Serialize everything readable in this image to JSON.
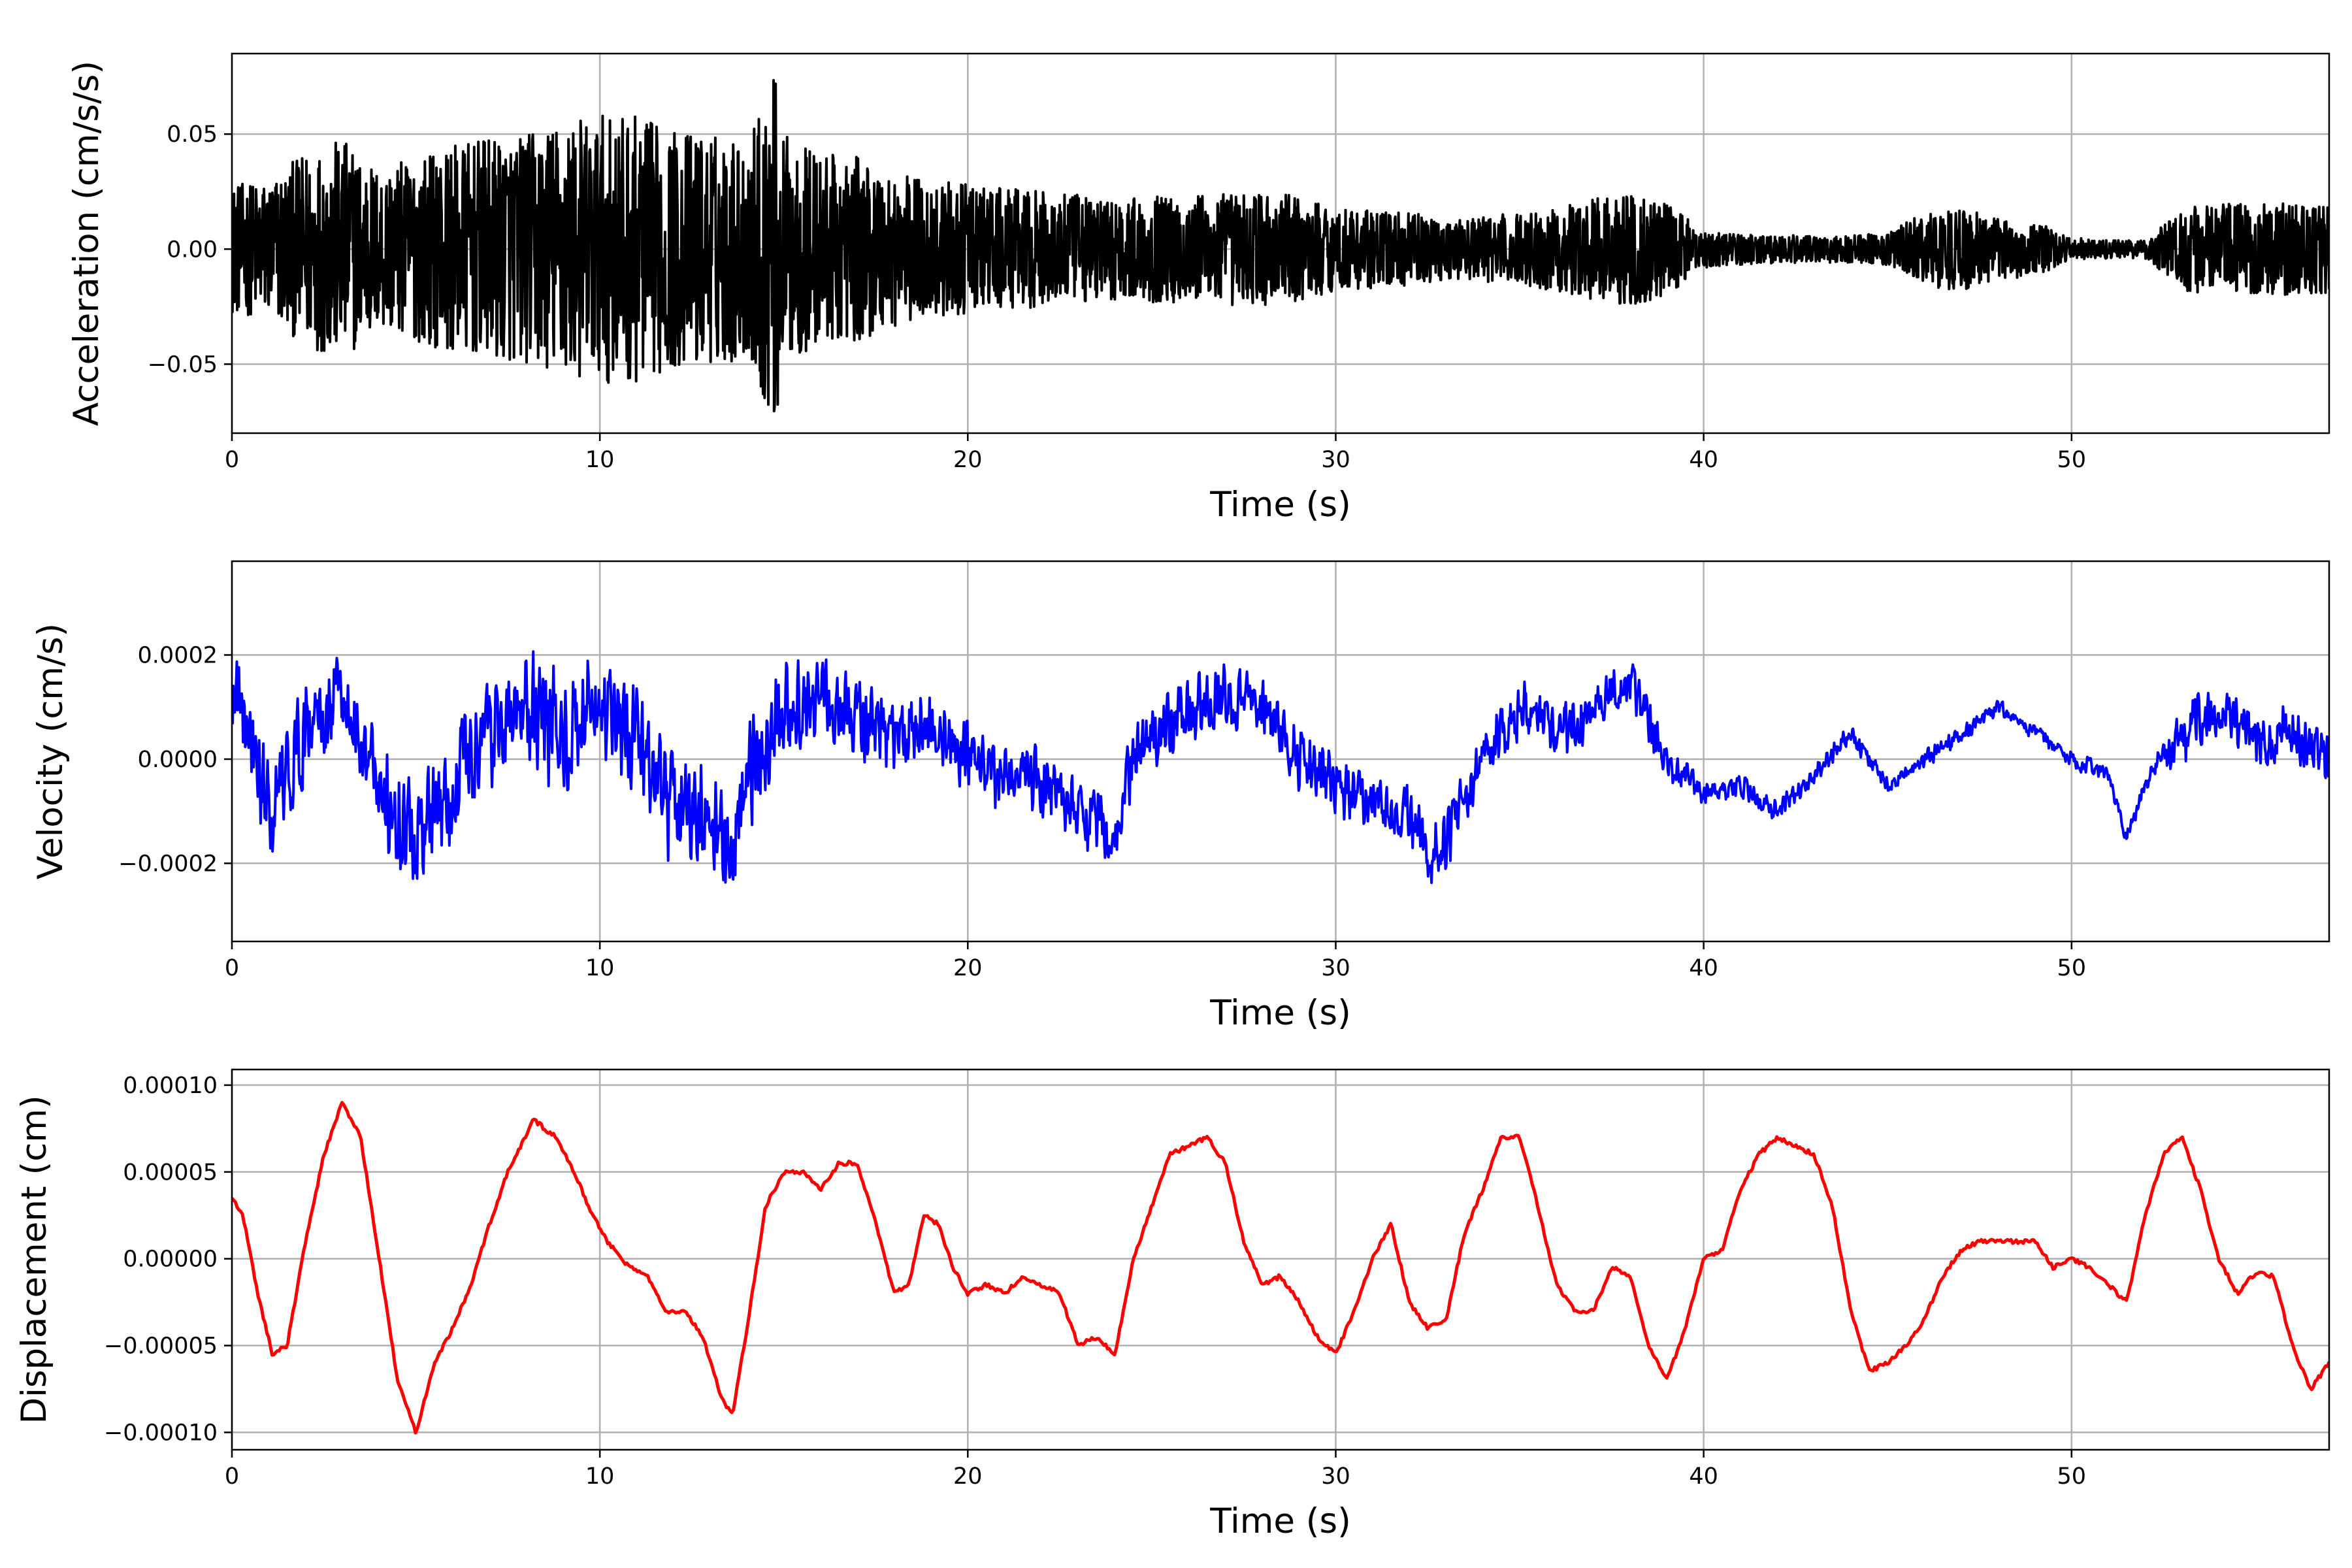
{
  "chart_data": [
    {
      "type": "line",
      "xlabel": "Time (s)",
      "ylabel": "Acceleration (cm/s/s)",
      "xlim": [
        0,
        57
      ],
      "ylim": [
        -0.08,
        0.085
      ],
      "xticks": [
        0,
        10,
        20,
        30,
        40,
        50
      ],
      "xtick_labels": [
        "0",
        "10",
        "20",
        "30",
        "40",
        "50"
      ],
      "yticks": [
        -0.05,
        0.0,
        0.05
      ],
      "ytick_labels": [
        "−0.05",
        "0.00",
        "0.05"
      ],
      "grid": true,
      "color": "#000000",
      "series": [
        {
          "envelope": {
            "t": [
              0,
              1,
              2,
              3,
              4,
              5,
              6,
              7,
              8,
              9,
              10,
              11,
              12,
              13,
              14,
              14.8,
              15,
              16,
              17,
              18,
              19,
              20,
              22,
              24,
              26,
              28,
              29,
              30,
              32,
              33,
              34,
              36,
              37,
              38,
              39,
              40,
              42,
              44,
              45,
              46,
              47,
              48,
              49,
              50,
              51,
              52,
              53,
              54,
              55,
              56,
              57
            ],
            "amp": [
              0.028,
              0.03,
              0.042,
              0.048,
              0.035,
              0.04,
              0.045,
              0.048,
              0.05,
              0.056,
              0.058,
              0.058,
              0.052,
              0.05,
              0.048,
              0.078,
              0.05,
              0.042,
              0.04,
              0.034,
              0.03,
              0.028,
              0.025,
              0.022,
              0.024,
              0.025,
              0.023,
              0.018,
              0.016,
              0.013,
              0.014,
              0.018,
              0.022,
              0.025,
              0.02,
              0.008,
              0.006,
              0.006,
              0.007,
              0.016,
              0.018,
              0.013,
              0.012,
              0.005,
              0.004,
              0.004,
              0.018,
              0.02,
              0.02,
              0.02,
              0.02
            ]
          }
        }
      ]
    },
    {
      "type": "line",
      "xlabel": "Time (s)",
      "ylabel": "Velocity (cm/s)",
      "xlim": [
        0,
        57
      ],
      "ylim": [
        -0.00035,
        0.00038
      ],
      "xticks": [
        0,
        10,
        20,
        30,
        40,
        50
      ],
      "xtick_labels": [
        "0",
        "10",
        "20",
        "30",
        "40",
        "50"
      ],
      "yticks": [
        -0.0002,
        0.0,
        0.0002
      ],
      "ytick_labels": [
        "−0.0002",
        "0.0000",
        "0.0002"
      ],
      "grid": true,
      "color": "#0000ff",
      "series": [
        {
          "trend": {
            "t": [
              0,
              0.3,
              1,
              2,
              3,
              4,
              5,
              6,
              7,
              8,
              9,
              10,
              11,
              12,
              13,
              13.5,
              14,
              15,
              16,
              17,
              18,
              19,
              20,
              21,
              22,
              23,
              24,
              24.5,
              25,
              26,
              27,
              28,
              29,
              30,
              31,
              32,
              32.5,
              33,
              34,
              35,
              36,
              37,
              38,
              39,
              40,
              41,
              42,
              43,
              44,
              45,
              46,
              47,
              48,
              49,
              50,
              51,
              51.5,
              52,
              53,
              54,
              55,
              56,
              57
            ],
            "v": [
              0.00015,
              0.0001,
              -0.0001,
              5e-05,
              0.0001,
              -5e-05,
              -0.00015,
              -5e-05,
              5e-05,
              0.0001,
              5e-05,
              8e-05,
              3e-05,
              -0.0001,
              -0.0001,
              -0.0002,
              -5e-05,
              0.0001,
              0.0001,
              8e-05,
              5e-05,
              5e-05,
              0.0,
              -3e-05,
              -5e-05,
              -0.0001,
              -0.00015,
              0.0,
              5e-05,
              0.0001,
              0.00012,
              0.0001,
              0.0,
              -5e-05,
              -8e-05,
              -0.0001,
              -0.0002,
              -0.00015,
              0.0,
              0.0001,
              5e-05,
              0.0001,
              0.00015,
              0.0,
              -7e-05,
              -5e-05,
              -0.0001,
              -3e-05,
              5e-05,
              -5e-05,
              0.0,
              5e-05,
              0.0001,
              5e-05,
              0.0,
              -3e-05,
              -0.00015,
              -5e-05,
              5e-05,
              0.0001,
              3e-05,
              5e-05,
              0.0
            ]
          },
          "noise": {
            "t": [
              0,
              10,
              15,
              17,
              20,
              25,
              30,
              38,
              40,
              45,
              52,
              53,
              57
            ],
            "amp": [
              8e-05,
              0.0001,
              9e-05,
              7e-05,
              6e-05,
              6e-05,
              5e-05,
              5e-05,
              2e-05,
              1.5e-05,
              1.5e-05,
              5e-05,
              5e-05
            ]
          }
        }
      ]
    },
    {
      "type": "line",
      "xlabel": "Time (s)",
      "ylabel": "Displacement (cm)",
      "xlim": [
        0,
        57
      ],
      "ylim": [
        -0.00011,
        0.000109
      ],
      "xticks": [
        0,
        10,
        20,
        30,
        40,
        50
      ],
      "xtick_labels": [
        "0",
        "10",
        "20",
        "30",
        "40",
        "50"
      ],
      "yticks": [
        -0.0001,
        -5e-05,
        0.0,
        5e-05,
        0.0001
      ],
      "ytick_labels": [
        "−0.00010",
        "−0.00005",
        "0.00000",
        "0.00005",
        "0.00010"
      ],
      "grid": true,
      "color": "#ff0000",
      "series": [
        {
          "t": [
            0,
            0.3,
            0.7,
            1.1,
            1.5,
            2.0,
            2.5,
            3.0,
            3.5,
            4.0,
            4.5,
            5.0,
            5.5,
            6.0,
            6.5,
            7.0,
            7.5,
            8.2,
            8.8,
            9.3,
            9.7,
            10.2,
            10.8,
            11.3,
            11.8,
            12.3,
            12.8,
            13.3,
            13.6,
            14.0,
            14.5,
            15.0,
            15.5,
            16.0,
            16.5,
            17.0,
            17.5,
            18.0,
            18.4,
            18.8,
            19.2,
            19.6,
            20.0,
            20.5,
            21.0,
            21.5,
            22.0,
            22.5,
            23.0,
            23.5,
            24.0,
            24.5,
            25.0,
            25.5,
            26.0,
            26.5,
            27.0,
            27.5,
            28.0,
            28.5,
            29.0,
            29.5,
            30.0,
            30.5,
            31.0,
            31.5,
            32.0,
            32.5,
            33.0,
            33.5,
            34.0,
            34.5,
            35.0,
            35.5,
            36.0,
            36.5,
            37.0,
            37.5,
            38.0,
            38.5,
            39.0,
            39.5,
            40.0,
            40.5,
            41.0,
            41.5,
            42.0,
            42.5,
            43.0,
            43.5,
            44.0,
            44.5,
            45.0,
            45.5,
            46.0,
            46.5,
            47.0,
            47.5,
            48.0,
            48.5,
            49.0,
            49.5,
            50.0,
            50.5,
            51.0,
            51.5,
            52.0,
            52.5,
            53.0,
            53.5,
            54.0,
            54.5,
            55.0,
            55.5,
            56.0,
            56.5,
            57.0
          ],
          "y": [
            3.5e-05,
            2.5e-05,
            -2e-05,
            -5.5e-05,
            -5e-05,
            1e-05,
            6e-05,
            9e-05,
            7e-05,
            0.0,
            -7e-05,
            -0.0001,
            -6e-05,
            -4e-05,
            -1.5e-05,
            2e-05,
            5e-05,
            8e-05,
            7e-05,
            5e-05,
            3e-05,
            1e-05,
            -5e-06,
            -1e-05,
            -3e-05,
            -3e-05,
            -4.5e-05,
            -8e-05,
            -9e-05,
            -4e-05,
            3e-05,
            5e-05,
            5e-05,
            4e-05,
            5.5e-05,
            5.5e-05,
            2e-05,
            -2e-05,
            -1.5e-05,
            2.5e-05,
            2e-05,
            -5e-06,
            -2e-05,
            -1.5e-05,
            -2e-05,
            -1e-05,
            -1.5e-05,
            -2e-05,
            -5e-05,
            -4.5e-05,
            -5.5e-05,
            0.0,
            3e-05,
            6e-05,
            6.5e-05,
            7e-05,
            5.5e-05,
            1e-05,
            -1.5e-05,
            -1e-05,
            -2.5e-05,
            -4.5e-05,
            -5.5e-05,
            -3e-05,
            0.0,
            2e-05,
            -2.5e-05,
            -4e-05,
            -3.5e-05,
            1.5e-05,
            4e-05,
            7e-05,
            7e-05,
            3e-05,
            -1.5e-05,
            -3e-05,
            -3e-05,
            -5e-06,
            -1e-05,
            -5e-05,
            -7e-05,
            -4e-05,
            0.0,
            5e-06,
            4e-05,
            6e-05,
            7e-05,
            6.5e-05,
            6e-05,
            3e-05,
            -3e-05,
            -6.5e-05,
            -6e-05,
            -5e-05,
            -3.5e-05,
            -1e-05,
            5e-06,
            1e-05,
            1e-05,
            1e-05,
            1e-05,
            -5e-06,
            0.0,
            -5e-06,
            -1.5e-05,
            -2.5e-05,
            2.5e-05,
            6e-05,
            7e-05,
            4e-05,
            0.0,
            -2e-05,
            -8e-06,
            -1e-05,
            -5e-05,
            -7.5e-05,
            -6e-05
          ]
        }
      ]
    }
  ]
}
